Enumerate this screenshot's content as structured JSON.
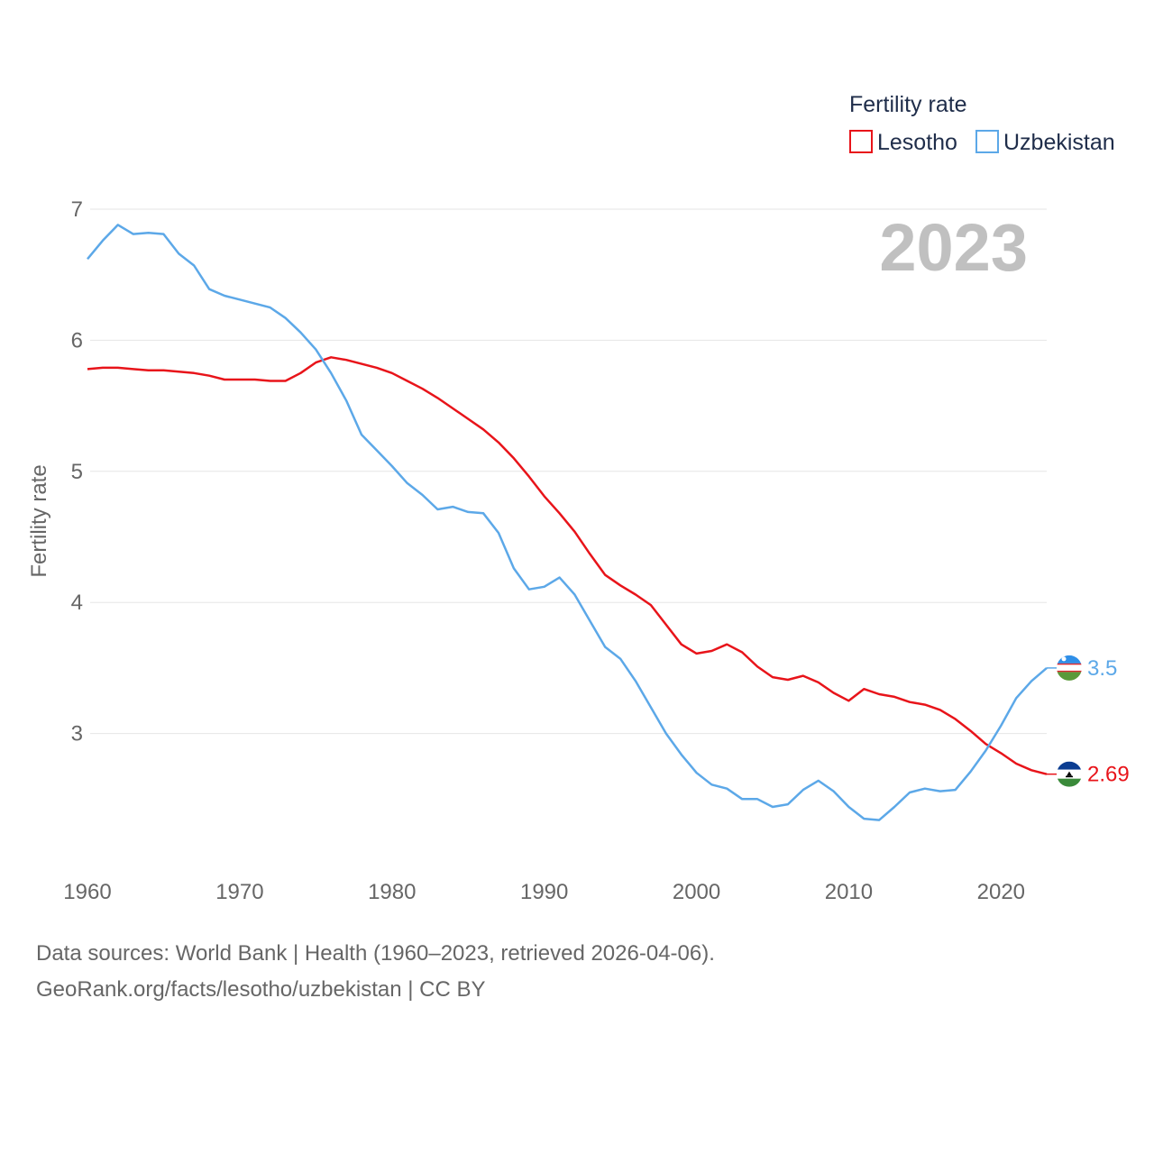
{
  "chart_data": {
    "type": "line",
    "title": "",
    "xlabel": "",
    "ylabel": "Fertility rate",
    "xlim": [
      1960,
      2023
    ],
    "ylim": [
      2.0,
      7.0
    ],
    "yticks": [
      "3",
      "4",
      "5",
      "6",
      "7"
    ],
    "xticks": [
      "1960",
      "1970",
      "1980",
      "1990",
      "2000",
      "2010",
      "2020"
    ],
    "year_label": "2023",
    "legend": {
      "title": "Fertility rate",
      "position": "top-right"
    },
    "x": [
      1960,
      1961,
      1962,
      1963,
      1964,
      1965,
      1966,
      1967,
      1968,
      1969,
      1970,
      1971,
      1972,
      1973,
      1974,
      1975,
      1976,
      1977,
      1978,
      1979,
      1980,
      1981,
      1982,
      1983,
      1984,
      1985,
      1986,
      1987,
      1988,
      1989,
      1990,
      1991,
      1992,
      1993,
      1994,
      1995,
      1996,
      1997,
      1998,
      1999,
      2000,
      2001,
      2002,
      2003,
      2004,
      2005,
      2006,
      2007,
      2008,
      2009,
      2010,
      2011,
      2012,
      2013,
      2014,
      2015,
      2016,
      2017,
      2018,
      2019,
      2020,
      2021,
      2022,
      2023
    ],
    "series": [
      {
        "name": "Lesotho",
        "color": "#e8141a",
        "end_label": "2.69",
        "values": [
          5.78,
          5.79,
          5.79,
          5.78,
          5.77,
          5.77,
          5.76,
          5.75,
          5.73,
          5.7,
          5.7,
          5.7,
          5.69,
          5.69,
          5.75,
          5.83,
          5.87,
          5.85,
          5.82,
          5.79,
          5.75,
          5.69,
          5.63,
          5.56,
          5.48,
          5.4,
          5.32,
          5.22,
          5.1,
          4.96,
          4.81,
          4.68,
          4.54,
          4.37,
          4.21,
          4.13,
          4.06,
          3.98,
          3.83,
          3.68,
          3.61,
          3.63,
          3.68,
          3.62,
          3.51,
          3.43,
          3.41,
          3.44,
          3.39,
          3.31,
          3.25,
          3.34,
          3.3,
          3.28,
          3.24,
          3.22,
          3.18,
          3.11,
          3.02,
          2.92,
          2.85,
          2.77,
          2.72,
          2.69
        ]
      },
      {
        "name": "Uzbekistan",
        "color": "#5ca8e8",
        "end_label": "3.5",
        "values": [
          6.62,
          6.76,
          6.88,
          6.81,
          6.82,
          6.81,
          6.66,
          6.57,
          6.39,
          6.34,
          6.31,
          6.28,
          6.25,
          6.17,
          6.06,
          5.93,
          5.75,
          5.54,
          5.28,
          5.16,
          5.04,
          4.91,
          4.82,
          4.71,
          4.73,
          4.69,
          4.68,
          4.53,
          4.26,
          4.1,
          4.12,
          4.19,
          4.06,
          3.86,
          3.66,
          3.57,
          3.4,
          3.2,
          3.0,
          2.84,
          2.7,
          2.61,
          2.58,
          2.5,
          2.5,
          2.44,
          2.46,
          2.57,
          2.64,
          2.56,
          2.44,
          2.35,
          2.34,
          2.44,
          2.55,
          2.58,
          2.56,
          2.57,
          2.71,
          2.87,
          3.06,
          3.27,
          3.4,
          3.5
        ]
      }
    ]
  },
  "footer": {
    "sources": "Data sources: World Bank | Health (1960–2023, retrieved 2026-04-06).",
    "attribution": "GeoRank.org/facts/lesotho/uzbekistan | CC BY"
  }
}
